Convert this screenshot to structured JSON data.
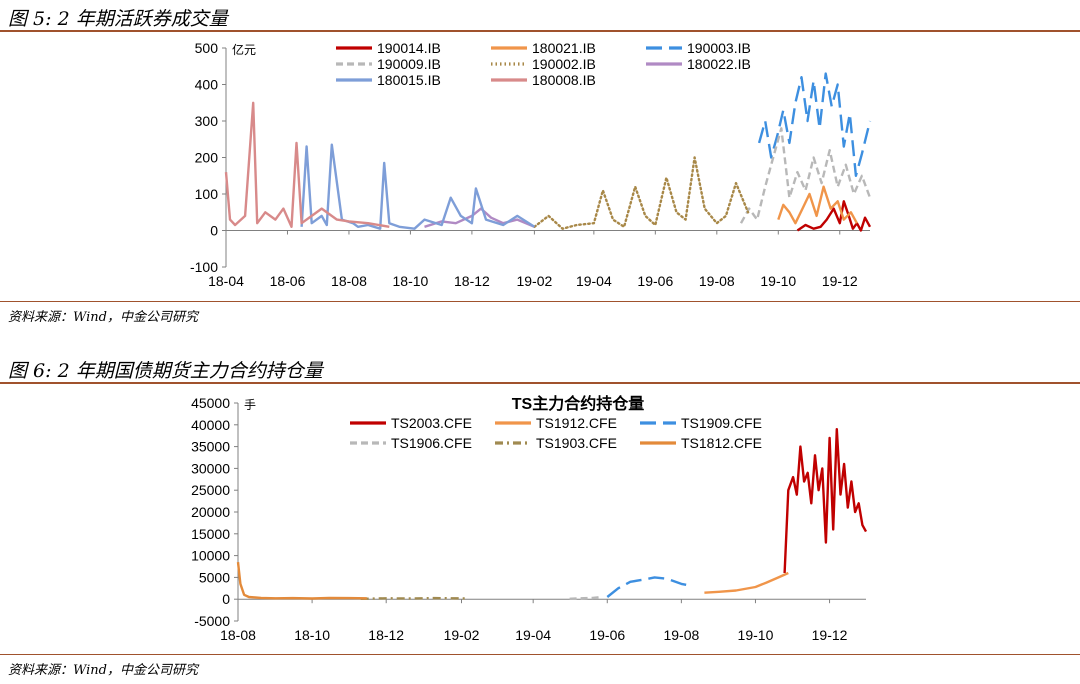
{
  "figure5": {
    "title": "图 5: 2 年期活跃券成交量",
    "source": "资料来源：Wind，中金公司研究"
  },
  "figure6": {
    "title": "图 6: 2 年期国债期货主力合约持仓量",
    "source": "资料来源：Wind，中金公司研究"
  },
  "chart_data": [
    {
      "type": "line",
      "title": "",
      "xlabel": "",
      "ylabel": "亿元",
      "ylim": [
        -100,
        500
      ],
      "yticks": [
        -100,
        0,
        100,
        200,
        300,
        400,
        500
      ],
      "xlim": [
        "2018-04-01",
        "2019-12-31"
      ],
      "xticks": [
        "18-04",
        "18-06",
        "18-08",
        "18-10",
        "18-12",
        "19-02",
        "19-04",
        "19-06",
        "19-08",
        "19-10",
        "19-12"
      ],
      "legend_position": "top",
      "series": [
        {
          "name": "190014.IB",
          "color": "#c00000",
          "dash": "solid",
          "x": [
            "2019-10-20",
            "2019-10-28",
            "2019-11-05",
            "2019-11-12",
            "2019-11-18",
            "2019-11-25",
            "2019-12-01",
            "2019-12-05",
            "2019-12-10",
            "2019-12-14",
            "2019-12-18",
            "2019-12-22",
            "2019-12-26",
            "2019-12-31"
          ],
          "y": [
            0,
            15,
            5,
            10,
            30,
            60,
            20,
            80,
            40,
            5,
            20,
            0,
            35,
            10
          ]
        },
        {
          "name": "180021.IB",
          "color": "#f0954a",
          "dash": "solid",
          "x": [
            "2019-10-01",
            "2019-10-06",
            "2019-10-12",
            "2019-10-18",
            "2019-10-25",
            "2019-11-01",
            "2019-11-08",
            "2019-11-15",
            "2019-11-22",
            "2019-11-29",
            "2019-12-05",
            "2019-12-12",
            "2019-12-18"
          ],
          "y": [
            30,
            70,
            50,
            20,
            60,
            100,
            40,
            120,
            60,
            80,
            30,
            50,
            20
          ]
        },
        {
          "name": "190003.IB",
          "color": "#3d8fe0",
          "dash": "longdash",
          "x": [
            "2019-09-12",
            "2019-09-18",
            "2019-09-24",
            "2019-09-30",
            "2019-10-06",
            "2019-10-12",
            "2019-10-18",
            "2019-10-24",
            "2019-10-30",
            "2019-11-05",
            "2019-11-11",
            "2019-11-17",
            "2019-11-23",
            "2019-11-29",
            "2019-12-05",
            "2019-12-11",
            "2019-12-17",
            "2019-12-23",
            "2019-12-31"
          ],
          "y": [
            240,
            300,
            200,
            260,
            330,
            240,
            350,
            420,
            300,
            410,
            280,
            430,
            340,
            400,
            230,
            320,
            150,
            210,
            300
          ]
        },
        {
          "name": "190009.IB",
          "color": "#b8b8b8",
          "dash": "dash",
          "x": [
            "2019-08-25",
            "2019-09-02",
            "2019-09-10",
            "2019-09-18",
            "2019-09-26",
            "2019-10-04",
            "2019-10-12",
            "2019-10-20",
            "2019-10-28",
            "2019-11-05",
            "2019-11-13",
            "2019-11-21",
            "2019-11-29",
            "2019-12-07",
            "2019-12-15",
            "2019-12-23",
            "2019-12-31"
          ],
          "y": [
            20,
            60,
            30,
            120,
            200,
            280,
            90,
            160,
            110,
            200,
            130,
            220,
            120,
            180,
            100,
            150,
            90
          ]
        },
        {
          "name": "190002.IB",
          "color": "#a88848",
          "dash": "dot",
          "x": [
            "2019-02-01",
            "2019-02-15",
            "2019-03-01",
            "2019-03-15",
            "2019-04-01",
            "2019-04-10",
            "2019-04-20",
            "2019-05-01",
            "2019-05-12",
            "2019-05-22",
            "2019-06-01",
            "2019-06-12",
            "2019-06-22",
            "2019-07-01",
            "2019-07-10",
            "2019-07-20",
            "2019-08-01",
            "2019-08-10",
            "2019-08-20",
            "2019-09-01"
          ],
          "y": [
            10,
            40,
            5,
            15,
            20,
            110,
            30,
            10,
            120,
            40,
            15,
            145,
            50,
            30,
            200,
            60,
            20,
            40,
            130,
            50
          ]
        },
        {
          "name": "180022.IB",
          "color": "#b08ac4",
          "dash": "solid",
          "x": [
            "2018-10-15",
            "2018-11-01",
            "2018-11-15",
            "2018-12-01",
            "2018-12-10",
            "2018-12-20",
            "2019-01-01",
            "2019-01-15",
            "2019-02-01"
          ],
          "y": [
            10,
            25,
            20,
            40,
            60,
            35,
            20,
            30,
            10
          ]
        },
        {
          "name": "180015.IB",
          "color": "#7e9ed8",
          "dash": "solid",
          "x": [
            "2018-06-15",
            "2018-06-20",
            "2018-06-25",
            "2018-07-05",
            "2018-07-10",
            "2018-07-15",
            "2018-07-25",
            "2018-08-05",
            "2018-08-10",
            "2018-08-20",
            "2018-09-01",
            "2018-09-05",
            "2018-09-10",
            "2018-09-20",
            "2018-10-05",
            "2018-10-15",
            "2018-11-01",
            "2018-11-10",
            "2018-11-20",
            "2018-12-01",
            "2018-12-05",
            "2018-12-15",
            "2019-01-01",
            "2019-01-15",
            "2019-02-01"
          ],
          "y": [
            10,
            230,
            20,
            40,
            15,
            235,
            30,
            20,
            10,
            15,
            5,
            185,
            20,
            10,
            5,
            30,
            15,
            90,
            40,
            20,
            115,
            30,
            15,
            40,
            10
          ]
        },
        {
          "name": "180008.IB",
          "color": "#d88a8a",
          "dash": "solid",
          "x": [
            "2018-04-01",
            "2018-04-05",
            "2018-04-10",
            "2018-04-20",
            "2018-04-28",
            "2018-05-02",
            "2018-05-10",
            "2018-05-20",
            "2018-05-28",
            "2018-06-05",
            "2018-06-10",
            "2018-06-15",
            "2018-06-25",
            "2018-07-05",
            "2018-07-20",
            "2018-08-01",
            "2018-08-20",
            "2018-09-10"
          ],
          "y": [
            160,
            30,
            15,
            40,
            350,
            20,
            50,
            30,
            60,
            10,
            240,
            20,
            40,
            60,
            30,
            25,
            20,
            10
          ]
        }
      ]
    },
    {
      "type": "line",
      "title": "TS主力合约持仓量",
      "xlabel": "",
      "ylabel": "手",
      "ylim": [
        -5000,
        45000
      ],
      "yticks": [
        -5000,
        0,
        5000,
        10000,
        15000,
        20000,
        25000,
        30000,
        35000,
        40000,
        45000
      ],
      "xlim": [
        "2018-08-01",
        "2019-12-31"
      ],
      "xticks": [
        "18-08",
        "18-10",
        "18-12",
        "19-02",
        "19-04",
        "19-06",
        "19-08",
        "19-10",
        "19-12"
      ],
      "legend_position": "top",
      "series": [
        {
          "name": "TS2003.CFE",
          "color": "#c00000",
          "dash": "solid",
          "x": [
            "2019-10-25",
            "2019-10-28",
            "2019-11-01",
            "2019-11-04",
            "2019-11-07",
            "2019-11-10",
            "2019-11-13",
            "2019-11-16",
            "2019-11-19",
            "2019-11-22",
            "2019-11-25",
            "2019-11-28",
            "2019-12-01",
            "2019-12-04",
            "2019-12-07",
            "2019-12-10",
            "2019-12-13",
            "2019-12-16",
            "2019-12-19",
            "2019-12-22",
            "2019-12-25",
            "2019-12-28",
            "2019-12-31"
          ],
          "y": [
            6000,
            25000,
            28000,
            24000,
            35000,
            27000,
            29000,
            22000,
            33000,
            25000,
            30000,
            13000,
            37000,
            16000,
            39000,
            24000,
            31000,
            21000,
            27000,
            20000,
            22000,
            17000,
            15500
          ]
        },
        {
          "name": "TS1912.CFE",
          "color": "#f0954a",
          "dash": "solid",
          "x": [
            "2019-08-20",
            "2019-09-01",
            "2019-09-15",
            "2019-10-01",
            "2019-10-10",
            "2019-10-20",
            "2019-10-28"
          ],
          "y": [
            1500,
            1700,
            2000,
            2800,
            3800,
            5000,
            6000
          ]
        },
        {
          "name": "TS1909.CFE",
          "color": "#3d8fe0",
          "dash": "longdash",
          "x": [
            "2019-06-01",
            "2019-06-10",
            "2019-06-20",
            "2019-07-01",
            "2019-07-10",
            "2019-07-20",
            "2019-08-01",
            "2019-08-10"
          ],
          "y": [
            500,
            2500,
            4000,
            4500,
            5000,
            4700,
            3500,
            3000
          ]
        },
        {
          "name": "TS1906.CFE",
          "color": "#b8b8b8",
          "dash": "dash",
          "x": [
            "2019-05-01",
            "2019-05-10",
            "2019-05-20",
            "2019-05-28"
          ],
          "y": [
            100,
            200,
            300,
            500
          ]
        },
        {
          "name": "TS1903.CFE",
          "color": "#a08a50",
          "dash": "dashdot",
          "x": [
            "2018-11-10",
            "2018-12-01",
            "2018-12-20",
            "2019-01-10",
            "2019-01-25",
            "2019-02-05"
          ],
          "y": [
            100,
            200,
            150,
            250,
            200,
            150
          ]
        },
        {
          "name": "TS1812.CFE",
          "color": "#e38a3a",
          "dash": "solid",
          "x": [
            "2018-08-01",
            "2018-08-03",
            "2018-08-06",
            "2018-08-10",
            "2018-08-20",
            "2018-09-01",
            "2018-09-15",
            "2018-10-01",
            "2018-10-15",
            "2018-11-01",
            "2018-11-15"
          ],
          "y": [
            8500,
            3500,
            1000,
            500,
            300,
            200,
            250,
            150,
            300,
            250,
            200
          ]
        }
      ]
    }
  ]
}
